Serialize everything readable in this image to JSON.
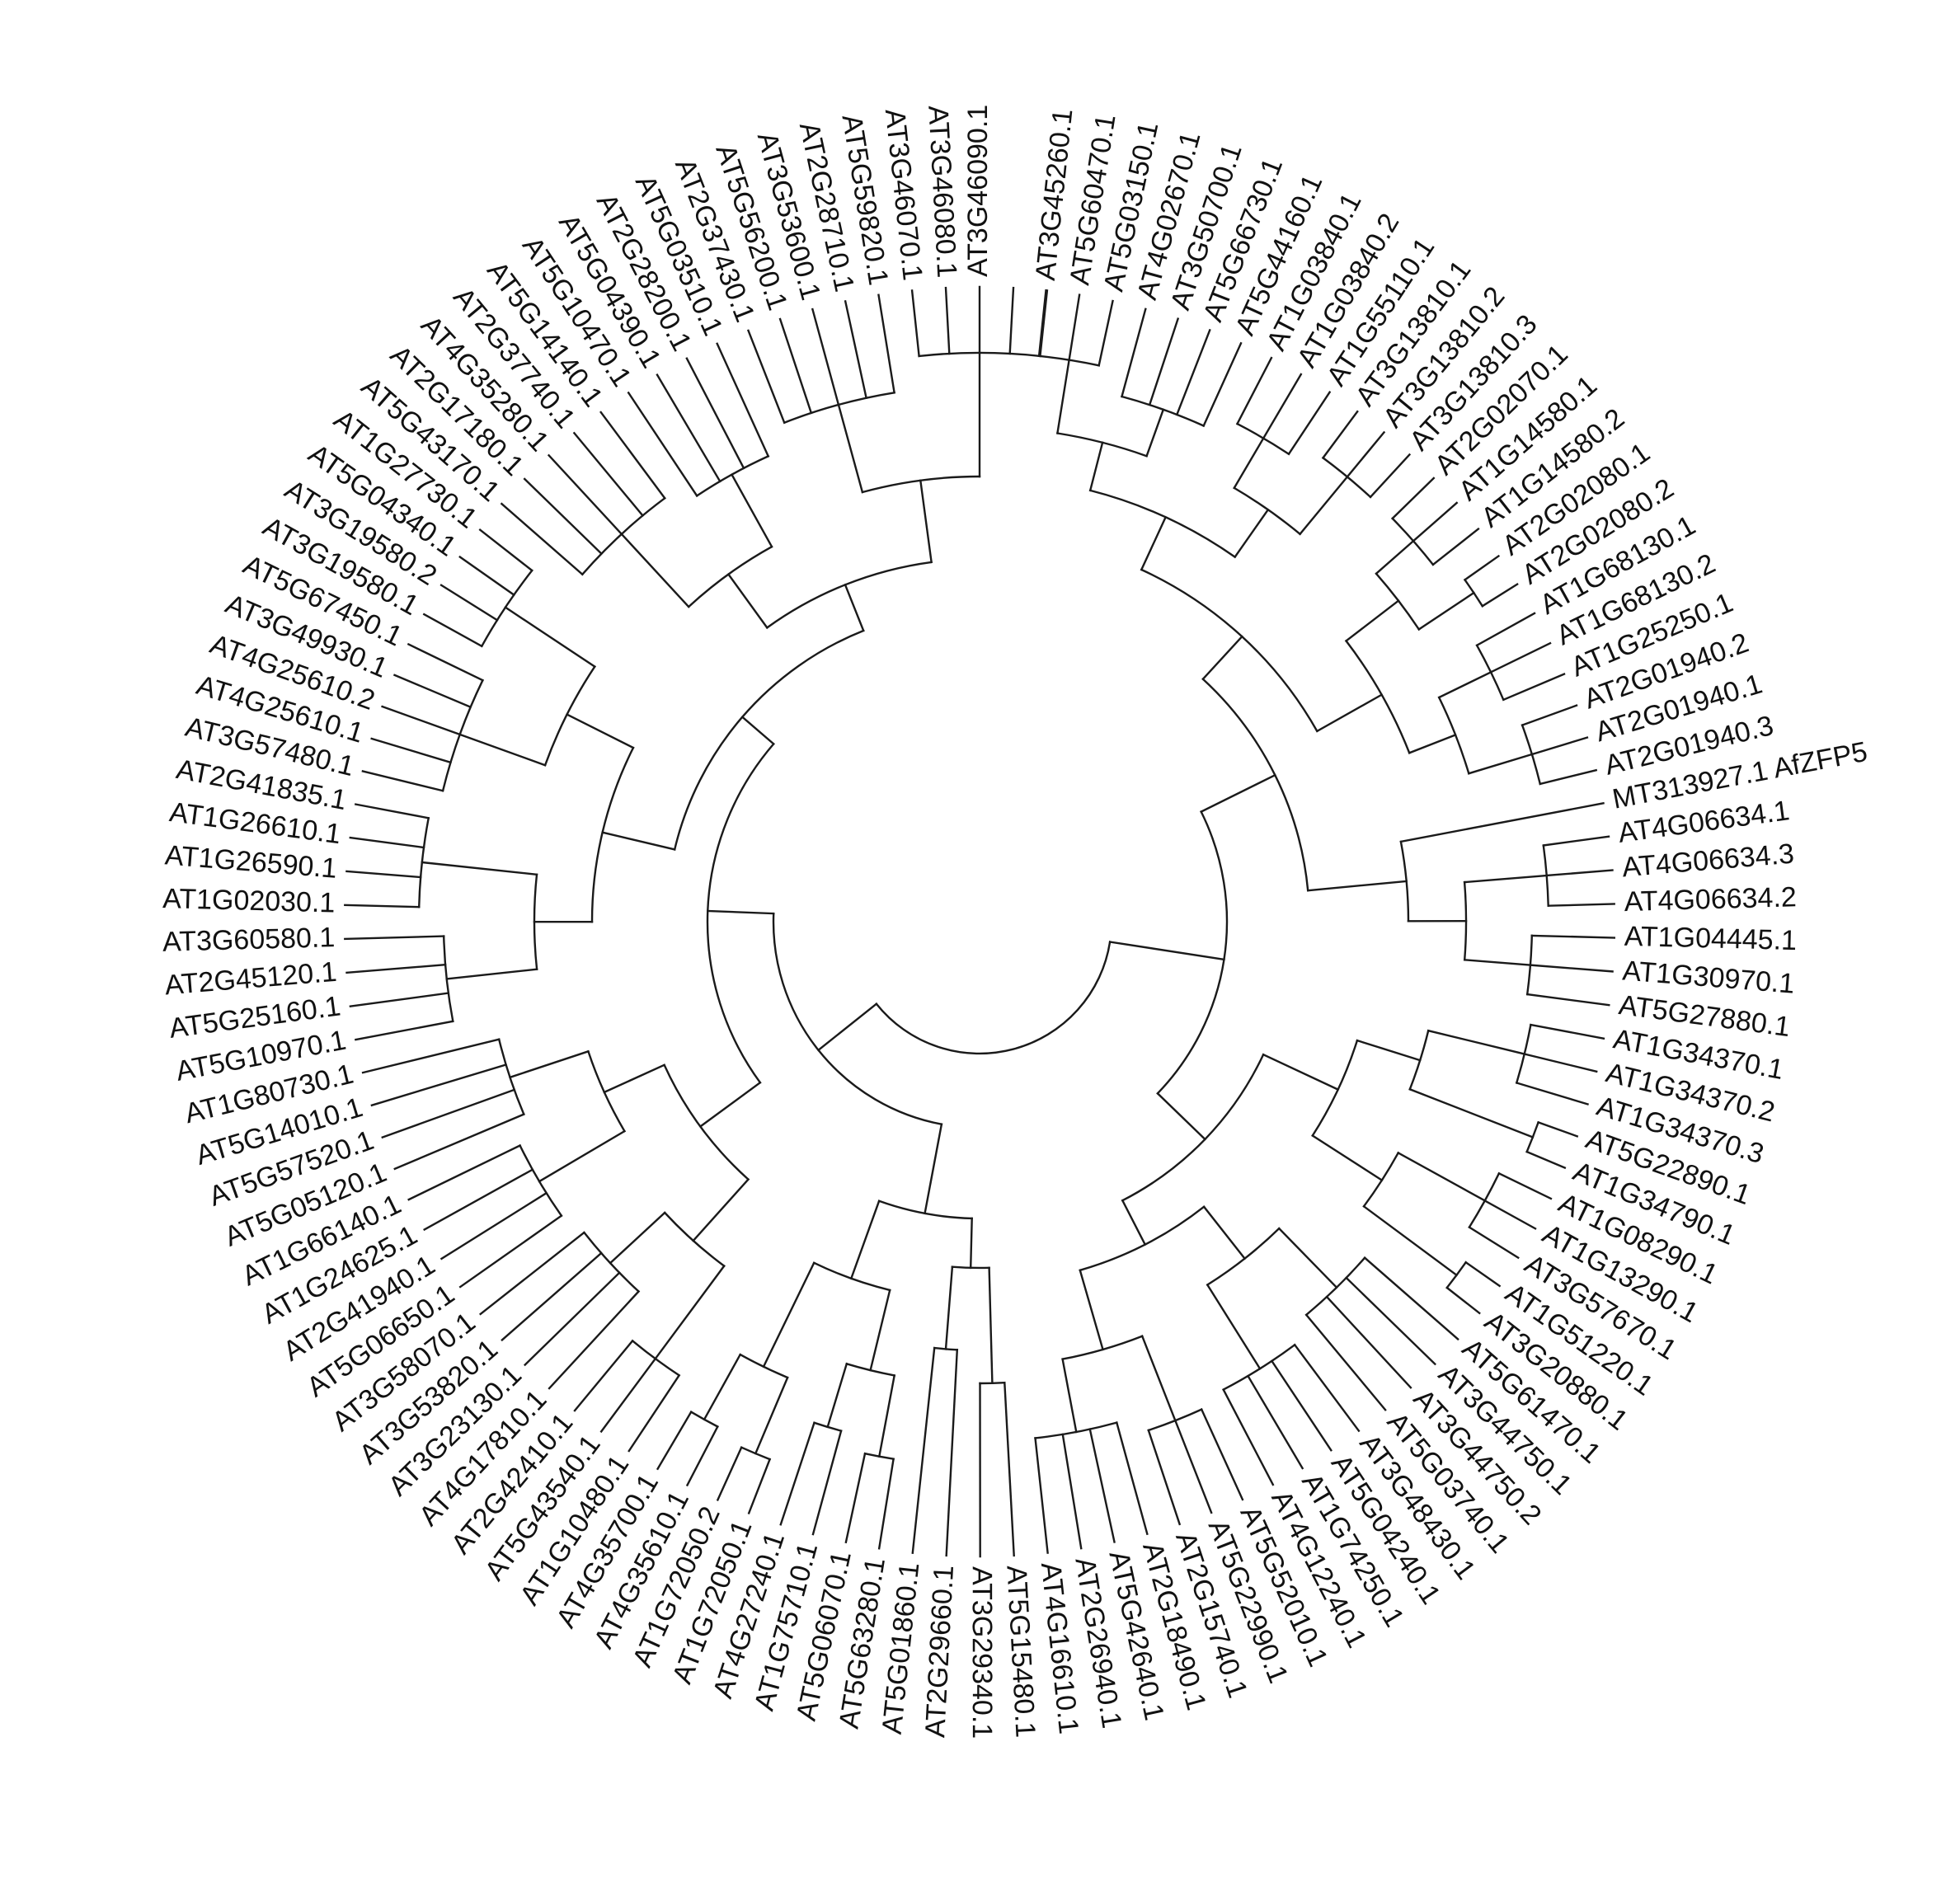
{
  "figure": {
    "type": "circular-phylogenetic-tree",
    "line_color": "#1a1a1a",
    "label_color": "#111111",
    "background": "#ffffff"
  },
  "leaves": [
    "AT3G45260.1",
    "AT5G60470.1",
    "AT5G03150.1",
    "AT4G02670.1",
    "AT3G50700.1",
    "AT5G66730.1",
    "AT5G44160.1",
    "AT1G03840.1",
    "AT1G03840.2",
    "AT1G55110.1",
    "AT3G13810.1",
    "AT3G13810.2",
    "AT3G13810.3",
    "AT2G02070.1",
    "AT1G14580.1",
    "AT1G14580.2",
    "AT2G02080.1",
    "AT2G02080.2",
    "AT1G68130.1",
    "AT1G68130.2",
    "AT1G25250.1",
    "AT2G01940.2",
    "AT2G01940.1",
    "AT2G01940.3",
    "MT313927.1 AfZFP5",
    "AT4G06634.1",
    "AT4G06634.3",
    "AT4G06634.2",
    "AT1G04445.1",
    "AT1G30970.1",
    "AT5G27880.1",
    "AT1G34370.1",
    "AT1G34370.2",
    "AT1G34370.3",
    "AT5G22890.1",
    "AT1G34790.1",
    "AT1G08290.1",
    "AT1G13290.1",
    "AT3G57670.1",
    "AT1G51220.1",
    "AT3G20880.1",
    "AT5G61470.1",
    "AT3G44750.1",
    "AT3G44750.2",
    "AT5G03740.1",
    "AT3G48430.1",
    "AT5G04240.1",
    "AT1G74250.1",
    "AT4G12240.1",
    "AT5G52010.1",
    "AT5G22990.1",
    "AT2G15740.1",
    "AT2G18490.1",
    "AT5G42640.1",
    "AT2G26940.1",
    "AT4G16610.1",
    "AT5G15480.1",
    "AT3G29340.1",
    "AT2G29660.1",
    "AT5G01860.1",
    "AT5G63280.1",
    "AT5G06070.1",
    "AT1G75710.1",
    "AT4G27240.1",
    "AT1G72050.1",
    "AT1G72050.2",
    "AT4G35610.1",
    "AT4G35700.1",
    "AT1G10480.1",
    "AT5G43540.1",
    "AT2G42410.1",
    "AT4G17810.1",
    "AT3G23130.1",
    "AT3G53820.1",
    "AT3G58070.1",
    "AT5G06650.1",
    "AT2G41940.1",
    "AT1G24625.1",
    "AT1G66140.1",
    "AT5G05120.1",
    "AT5G57520.1",
    "AT5G14010.1",
    "AT1G80730.1",
    "AT5G10970.1",
    "AT5G25160.1",
    "AT2G45120.1",
    "AT3G60580.1",
    "AT1G02030.1",
    "AT1G26590.1",
    "AT1G26610.1",
    "AT2G41835.1",
    "AT3G57480.1",
    "AT4G25610.1",
    "AT4G25610.2",
    "AT3G49930.1",
    "AT5G67450.1",
    "AT3G19580.1",
    "AT3G19580.2",
    "AT5G04340.1",
    "AT1G27730.1",
    "AT5G43170.1",
    "AT2G17180.1",
    "AT4G35280.1",
    "AT2G37740.1",
    "AT5G14140.1",
    "AT5G10470.1",
    "AT5G04390.1",
    "AT2G28200.1",
    "AT5G03510.1",
    "AT2G37430.1",
    "AT5G56200.1",
    "AT3G53600.1",
    "AT2G28710.1",
    "AT5G59820.1",
    "AT3G46070.1",
    "AT3G46080.1",
    "AT3G46090.1"
  ]
}
